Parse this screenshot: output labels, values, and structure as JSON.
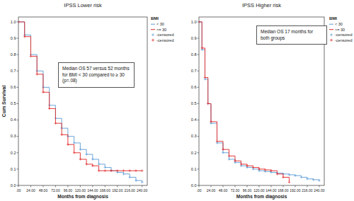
{
  "chart_data": [
    {
      "type": "line",
      "title": "IPSS Lower risk",
      "x_label": "Months from diagnosis",
      "y_label": "Cum Survival",
      "legend": "right",
      "legend_title": "BMI",
      "line_style": "step",
      "annotation": "Median OS 57 versus 52 months for BMI < 30 compared to ≥ 30 (p=.08)",
      "x": [
        0,
        12,
        24,
        36,
        48,
        60,
        72,
        84,
        96,
        108,
        120,
        132,
        144,
        156,
        168,
        180,
        192,
        204,
        216,
        228,
        240
      ],
      "xlim": [
        0,
        250
      ],
      "ylim": [
        0,
        1.03
      ],
      "xticks": [
        {
          "value": 0,
          "label": ".00"
        },
        {
          "value": 24,
          "label": "24.00"
        },
        {
          "value": 48,
          "label": "48.00"
        },
        {
          "value": 72,
          "label": "72.00"
        },
        {
          "value": 96,
          "label": "96.00"
        },
        {
          "value": 120,
          "label": "120.00"
        },
        {
          "value": 144,
          "label": "144.00"
        },
        {
          "value": 168,
          "label": "168.00"
        },
        {
          "value": 192,
          "label": "192.00"
        },
        {
          "value": 216,
          "label": "216.00"
        },
        {
          "value": 240,
          "label": "240.00"
        }
      ],
      "yticks": [
        {
          "value": 0,
          "label": "0.0"
        },
        {
          "value": 0.1,
          "label": "0.1"
        },
        {
          "value": 0.2,
          "label": "0.2"
        },
        {
          "value": 0.3,
          "label": "0.3"
        },
        {
          "value": 0.4,
          "label": "0.4"
        },
        {
          "value": 0.5,
          "label": "0.5"
        },
        {
          "value": 0.6,
          "label": "0.6"
        },
        {
          "value": 0.7,
          "label": "0.7"
        },
        {
          "value": 0.8,
          "label": "0.8"
        },
        {
          "value": 0.9,
          "label": "0.9"
        },
        {
          "value": 1,
          "label": "1.0"
        }
      ],
      "series": [
        {
          "name": "< 30",
          "color": "#5b9bd5",
          "marker": "plus",
          "censored_label": "-censored",
          "values": [
            1.0,
            0.92,
            0.8,
            0.7,
            0.6,
            0.49,
            0.41,
            0.35,
            0.3,
            0.26,
            0.22,
            0.19,
            0.16,
            0.13,
            0.11,
            0.09,
            0.08,
            0.07,
            0.05,
            0.03,
            0.02
          ]
        },
        {
          "name": ">= 30",
          "color": "#e02424",
          "marker": "plus",
          "censored_label": "-censored",
          "values": [
            1.0,
            0.91,
            0.79,
            0.68,
            0.57,
            0.47,
            0.38,
            0.31,
            0.25,
            0.2,
            0.16,
            0.13,
            0.12,
            0.09,
            0.09,
            0.09,
            0.09,
            0.09,
            0.09,
            0.09,
            0.09
          ]
        }
      ]
    },
    {
      "type": "line",
      "title": "IPSS Higher risk",
      "x_label": "Months from diagnosis",
      "legend": "right",
      "legend_title": "BMI",
      "line_style": "step",
      "annotation": "Median OS 17 months for both groups",
      "x": [
        0,
        6,
        12,
        18,
        24,
        36,
        48,
        60,
        72,
        84,
        96,
        108,
        120,
        132,
        144,
        156,
        168,
        180,
        192,
        204,
        216,
        228,
        240
      ],
      "xlim": [
        0,
        250
      ],
      "ylim": [
        0,
        1.03
      ],
      "xticks": [
        {
          "value": 0,
          "label": ".00"
        },
        {
          "value": 24,
          "label": "24.00"
        },
        {
          "value": 48,
          "label": "48.00"
        },
        {
          "value": 72,
          "label": "72.00"
        },
        {
          "value": 96,
          "label": "96.00"
        },
        {
          "value": 120,
          "label": "120.00"
        },
        {
          "value": 144,
          "label": "144.00"
        },
        {
          "value": 168,
          "label": "168.00"
        },
        {
          "value": 192,
          "label": "192.00"
        },
        {
          "value": 216,
          "label": "216.00"
        },
        {
          "value": 240,
          "label": "240.00"
        }
      ],
      "yticks": [
        {
          "value": 0,
          "label": "0.0"
        },
        {
          "value": 0.1,
          "label": "0.1"
        },
        {
          "value": 0.2,
          "label": "0.2"
        },
        {
          "value": 0.3,
          "label": "0.3"
        },
        {
          "value": 0.4,
          "label": "0.4"
        },
        {
          "value": 0.5,
          "label": "0.5"
        },
        {
          "value": 0.6,
          "label": "0.6"
        },
        {
          "value": 0.7,
          "label": "0.7"
        },
        {
          "value": 0.8,
          "label": "0.8"
        },
        {
          "value": 0.9,
          "label": "0.9"
        },
        {
          "value": 1,
          "label": "1.0"
        }
      ],
      "series": [
        {
          "name": "< 30",
          "color": "#5b9bd5",
          "marker": "plus",
          "censored_label": "-censored",
          "values": [
            1.0,
            0.83,
            0.65,
            0.5,
            0.38,
            0.26,
            0.2,
            0.16,
            0.14,
            0.12,
            0.11,
            0.1,
            0.09,
            0.085,
            0.08,
            0.075,
            0.07,
            0.065,
            0.06,
            0.05,
            0.04,
            0.035,
            0.03
          ]
        },
        {
          "name": ">= 30",
          "color": "#e02424",
          "marker": "plus",
          "censored_label": "-censored",
          "values": [
            1.0,
            0.84,
            0.66,
            0.5,
            0.39,
            0.27,
            0.22,
            0.18,
            0.15,
            0.13,
            0.12,
            0.11,
            0.1,
            0.095,
            0.09,
            0.07,
            0.05,
            0.02,
            null,
            null,
            null,
            null,
            null
          ]
        }
      ]
    }
  ]
}
